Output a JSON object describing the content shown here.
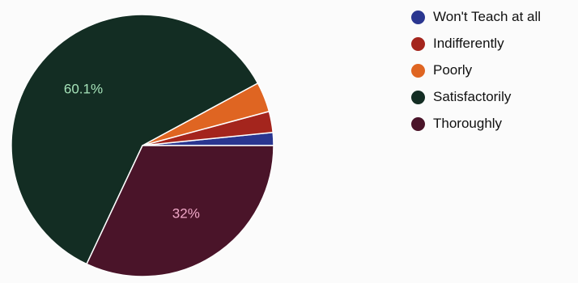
{
  "chart_data": {
    "type": "pie",
    "slices": [
      {
        "label": "Won't Teach at all",
        "value": 1.6,
        "color": "#2a3690"
      },
      {
        "label": "Indifferently",
        "value": 2.6,
        "color": "#a4251d"
      },
      {
        "label": "Poorly",
        "value": 3.7,
        "color": "#df6522"
      },
      {
        "label": "Satisfactorily",
        "value": 60.1,
        "color": "#132d23",
        "data_label": "60.1%",
        "data_label_color": "#a6e3b9"
      },
      {
        "label": "Thoroughly",
        "value": 32,
        "color": "#4a1429",
        "data_label": "32%",
        "data_label_color": "#f1a8c8"
      }
    ],
    "start_direction": "right",
    "direction": "counter-clockwise",
    "legend_position": "right"
  }
}
